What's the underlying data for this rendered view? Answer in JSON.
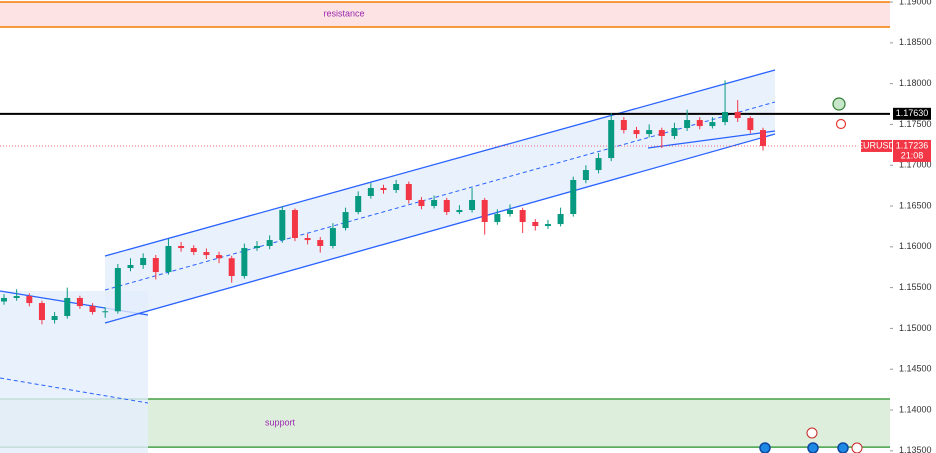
{
  "chart_data": {
    "type": "candlestick",
    "symbol": "EURUSD",
    "countdown": "21:08",
    "ylim": [
      1.13473,
      1.19025
    ],
    "yticks": [
      {
        "value": 1.19,
        "label": "1.19000"
      },
      {
        "value": 1.185,
        "label": "1.18500"
      },
      {
        "value": 1.18,
        "label": "1.18000"
      },
      {
        "value": 1.175,
        "label": "1.17500"
      },
      {
        "value": 1.17,
        "label": "1.17000"
      },
      {
        "value": 1.165,
        "label": "1.16500"
      },
      {
        "value": 1.16,
        "label": "1.16000"
      },
      {
        "value": 1.155,
        "label": "1.15500"
      },
      {
        "value": 1.15,
        "label": "1.15000"
      },
      {
        "value": 1.145,
        "label": "1.14500"
      },
      {
        "value": 1.14,
        "label": "1.14000"
      },
      {
        "value": 1.135,
        "label": "1.13500"
      }
    ],
    "up_color": "#089981",
    "down_color": "#f23645",
    "zones": [
      {
        "label": "resistance",
        "top": 1.19,
        "bottom": 1.18694,
        "fill": "#fde3e3",
        "border": "#f57c00",
        "text_color": "#9c27b0"
      },
      {
        "label": "support",
        "top": 1.14135,
        "bottom": 1.13545,
        "fill": "#deeedd",
        "border": "#43a047",
        "text_color": "#9c27b0"
      }
    ],
    "level": {
      "value": 1.1763,
      "label": "1.17630"
    },
    "last_price": 1.17236,
    "series": [
      {
        "name": "EURUSD",
        "open": [
          1.1533,
          1.15373,
          1.15397,
          1.15311,
          1.15103,
          1.15152,
          1.15373,
          1.15274,
          1.15201,
          1.1521,
          1.1574,
          1.15777,
          1.15863,
          1.15691,
          1.1601,
          1.15985,
          1.15936,
          1.15899,
          1.1586,
          1.15642,
          1.15985,
          1.1601,
          1.16083,
          1.16451,
          1.16108,
          1.16083,
          1.1601,
          1.1623,
          1.16426,
          1.16623,
          1.16721,
          1.16696,
          1.1677,
          1.16574,
          1.165,
          1.16574,
          1.16426,
          1.16451,
          1.16574,
          1.16304,
          1.16402,
          1.16451,
          1.16304,
          1.16255,
          1.16279,
          1.16402,
          1.16819,
          1.16941,
          1.17088,
          1.17554,
          1.17431,
          1.17382,
          1.17431,
          1.17358,
          1.17456,
          1.17554,
          1.1748,
          1.17529,
          1.17652,
          1.17578,
          1.17431
        ],
        "high": [
          1.1542,
          1.1548,
          1.1543,
          1.1534,
          1.152,
          1.155,
          1.154,
          1.1531,
          1.1526,
          1.1579,
          1.1586,
          1.1592,
          1.159,
          1.161,
          1.1606,
          1.1602,
          1.1598,
          1.1594,
          1.1589,
          1.1604,
          1.1607,
          1.1614,
          1.165,
          1.1647,
          1.1616,
          1.1612,
          1.1629,
          1.1648,
          1.1668,
          1.1678,
          1.1676,
          1.1682,
          1.168,
          1.1661,
          1.1663,
          1.166,
          1.1651,
          1.1672,
          1.166,
          1.1646,
          1.1652,
          1.1648,
          1.1634,
          1.1633,
          1.1648,
          1.1686,
          1.17,
          1.1715,
          1.1764,
          1.1759,
          1.1747,
          1.175,
          1.1746,
          1.1752,
          1.1768,
          1.1759,
          1.1759,
          1.1804,
          1.178,
          1.176,
          1.1746
        ],
        "low": [
          1.1529,
          1.1534,
          1.1527,
          1.1505,
          1.1506,
          1.1512,
          1.1524,
          1.1517,
          1.1513,
          1.1518,
          1.157,
          1.1573,
          1.156,
          1.1566,
          1.1594,
          1.159,
          1.1585,
          1.158,
          1.1556,
          1.1561,
          1.1595,
          1.1597,
          1.1605,
          1.1607,
          1.1603,
          1.1593,
          1.1598,
          1.162,
          1.164,
          1.1659,
          1.1665,
          1.1666,
          1.1653,
          1.1646,
          1.1647,
          1.1639,
          1.164,
          1.1642,
          1.1615,
          1.1627,
          1.1637,
          1.1617,
          1.162,
          1.1622,
          1.1625,
          1.1637,
          1.1678,
          1.169,
          1.1705,
          1.1739,
          1.1733,
          1.1734,
          1.1721,
          1.1732,
          1.1742,
          1.1744,
          1.1745,
          1.1749,
          1.1753,
          1.1739,
          1.1718
        ],
        "close": [
          1.15373,
          1.15397,
          1.15311,
          1.15103,
          1.15152,
          1.15373,
          1.15274,
          1.15201,
          1.1521,
          1.1574,
          1.15777,
          1.15863,
          1.15691,
          1.1601,
          1.15985,
          1.15936,
          1.15899,
          1.1586,
          1.15642,
          1.15985,
          1.1601,
          1.16083,
          1.16451,
          1.16108,
          1.16083,
          1.1601,
          1.1623,
          1.16426,
          1.16623,
          1.16721,
          1.16696,
          1.1677,
          1.16574,
          1.165,
          1.16574,
          1.16426,
          1.16451,
          1.16574,
          1.16304,
          1.16402,
          1.16451,
          1.16304,
          1.16255,
          1.16279,
          1.16402,
          1.16819,
          1.16941,
          1.17088,
          1.17554,
          1.17431,
          1.17382,
          1.17431,
          1.17358,
          1.17456,
          1.17554,
          1.1748,
          1.17529,
          1.17652,
          1.17578,
          1.17431,
          1.17236
        ]
      }
    ]
  }
}
